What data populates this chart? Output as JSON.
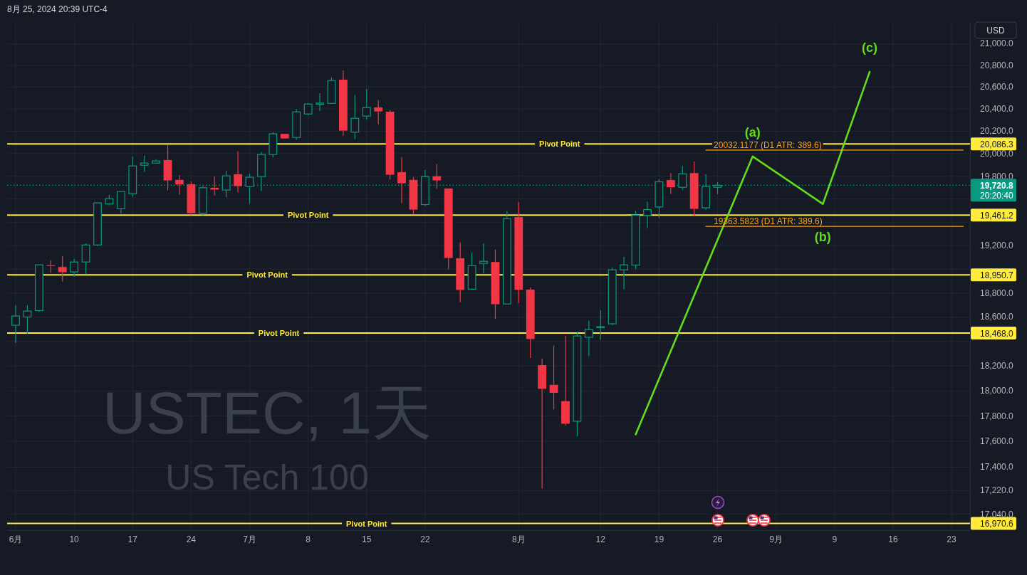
{
  "chart_data": {
    "type": "candlestick",
    "title": "USTEC, 1天",
    "subtitle": "US Tech 100",
    "ylabel": "USD",
    "categories": [
      "6月",
      null,
      null,
      null,
      null,
      "10",
      null,
      null,
      null,
      null,
      "17",
      null,
      null,
      null,
      null,
      "24",
      null,
      null,
      null,
      null,
      "7月",
      null,
      null,
      null,
      null,
      "8",
      null,
      null,
      null,
      null,
      "15",
      null,
      null,
      null,
      null,
      "22",
      null,
      null,
      null,
      null,
      null,
      null,
      null,
      "8月",
      null,
      null,
      null,
      null,
      null,
      null,
      "12",
      null,
      null,
      null,
      null,
      "19",
      null,
      null,
      null,
      null,
      "26",
      null,
      null,
      null,
      null,
      "9月",
      null,
      null,
      null,
      null,
      "9",
      null,
      null,
      null,
      null,
      "16",
      null,
      null,
      null,
      null,
      "23",
      null
    ],
    "ohlc": [
      [
        18532,
        18698,
        18386,
        18608
      ],
      [
        18600,
        18698,
        18458,
        18649
      ],
      [
        18653,
        19036,
        18641,
        19036
      ],
      [
        19030,
        19074,
        18968,
        19025
      ],
      [
        19018,
        19110,
        18896,
        18974
      ],
      [
        18976,
        19086,
        18936,
        19060
      ],
      [
        19060,
        19218,
        18956,
        19205
      ],
      [
        19205,
        19567,
        19195,
        19567
      ],
      [
        19558,
        19637,
        19546,
        19604
      ],
      [
        19517,
        19666,
        19478,
        19666
      ],
      [
        19647,
        19975,
        19620,
        19891
      ],
      [
        19897,
        19981,
        19838,
        19916
      ],
      [
        19916,
        19950,
        19916,
        19935
      ],
      [
        19943,
        20080,
        19676,
        19763
      ],
      [
        19768,
        19811,
        19637,
        19728
      ],
      [
        19730,
        19753,
        19460,
        19478
      ],
      [
        19478,
        19713,
        19460,
        19699
      ],
      [
        19699,
        19797,
        19631,
        19683
      ],
      [
        19679,
        19849,
        19614,
        19803
      ],
      [
        19818,
        20019,
        19657,
        19713
      ],
      [
        19710,
        19824,
        19563,
        19791
      ],
      [
        19797,
        20013,
        19670,
        19992
      ],
      [
        19992,
        20190,
        19964,
        20176
      ],
      [
        20176,
        20176,
        20135,
        20135
      ],
      [
        20144,
        20400,
        20122,
        20374
      ],
      [
        20355,
        20451,
        20345,
        20445
      ],
      [
        20443,
        20544,
        20383,
        20454
      ],
      [
        20451,
        20688,
        20451,
        20660
      ],
      [
        20668,
        20753,
        20160,
        20205
      ],
      [
        20192,
        20525,
        20129,
        20316
      ],
      [
        20336,
        20583,
        20301,
        20413
      ],
      [
        20415,
        20480,
        20261,
        20378
      ],
      [
        20376,
        20389,
        19769,
        19813
      ],
      [
        19836,
        19968,
        19564,
        19738
      ],
      [
        19768,
        19793,
        19472,
        19509
      ],
      [
        19552,
        19855,
        19540,
        19797
      ],
      [
        19800,
        19906,
        19693,
        19763
      ],
      [
        19693,
        19693,
        18998,
        19094
      ],
      [
        19092,
        19226,
        18722,
        18825
      ],
      [
        18831,
        19141,
        18831,
        19030
      ],
      [
        19048,
        19218,
        18964,
        19066
      ],
      [
        19060,
        19165,
        18585,
        18706
      ],
      [
        18708,
        19495,
        18708,
        19431
      ],
      [
        19444,
        19575,
        18716,
        18827
      ],
      [
        18828,
        18847,
        18265,
        18419
      ],
      [
        18207,
        18261,
        17236,
        18016
      ],
      [
        18048,
        18365,
        17852,
        17984
      ],
      [
        17918,
        18446,
        17724,
        17739
      ],
      [
        17758,
        18477,
        17641,
        18444
      ],
      [
        18433,
        18571,
        18280,
        18497
      ],
      [
        18515,
        18657,
        18413,
        18520
      ],
      [
        18544,
        19014,
        18532,
        18994
      ],
      [
        18994,
        19103,
        18831,
        19036
      ],
      [
        19034,
        19496,
        19000,
        19460
      ],
      [
        19458,
        19579,
        19349,
        19509
      ],
      [
        19532,
        19772,
        19435,
        19751
      ],
      [
        19766,
        19828,
        19645,
        19703
      ],
      [
        19703,
        19891,
        19683,
        19822
      ],
      [
        19828,
        19929,
        19452,
        19515
      ],
      [
        19524,
        19818,
        19509,
        19710
      ],
      [
        19703,
        19749,
        19642,
        19720.8
      ],
      null,
      null,
      null,
      null,
      null,
      null,
      null,
      null,
      null,
      null,
      null,
      null,
      null,
      null,
      null,
      null,
      null,
      null,
      null,
      null,
      null
    ],
    "colors": [
      "#089981",
      "#089981",
      "#089981",
      "#f23645",
      "#f23645",
      "#089981",
      "#089981",
      "#089981",
      "#089981",
      "#089981",
      "#089981",
      "#089981",
      "#089981",
      "#f23645",
      "#f23645",
      "#f23645",
      "#089981",
      "#f23645",
      "#089981",
      "#f23645",
      "#089981",
      "#089981",
      "#089981",
      "#f23645",
      "#089981",
      "#089981",
      "#089981",
      "#089981",
      "#f23645",
      "#089981",
      "#089981",
      "#f23645",
      "#f23645",
      "#f23645",
      "#f23645",
      "#089981",
      "#f23645",
      "#f23645",
      "#f23645",
      "#089981",
      "#089981",
      "#f23645",
      "#089981",
      "#f23645",
      "#f23645",
      "#f23645",
      "#f23645",
      "#f23645",
      "#089981",
      "#089981",
      "#089981",
      "#089981",
      "#089981",
      "#089981",
      "#089981",
      "#089981",
      "#f23645",
      "#089981",
      "#f23645",
      "#089981",
      "#089981",
      null,
      null,
      null,
      null,
      null,
      null,
      null,
      null,
      null,
      null,
      null,
      null,
      null,
      null,
      null,
      null,
      null,
      null,
      null,
      null,
      null
    ],
    "series": [
      {
        "type": "line",
        "color": "#62dd1c",
        "values": [
          null,
          null,
          null,
          null,
          null,
          null,
          null,
          null,
          null,
          null,
          null,
          null,
          null,
          null,
          null,
          null,
          null,
          null,
          null,
          null,
          null,
          null,
          null,
          null,
          null,
          null,
          null,
          null,
          null,
          null,
          null,
          null,
          null,
          null,
          null,
          null,
          null,
          null,
          null,
          null,
          null,
          null,
          null,
          null,
          null,
          null,
          null,
          null,
          null,
          null,
          null,
          null,
          null,
          17655,
          null,
          null,
          null,
          null,
          null,
          null,
          null,
          null,
          null,
          19975,
          null,
          null,
          null,
          null,
          null,
          19558,
          null,
          null,
          null,
          20740,
          null,
          null,
          null,
          null,
          null,
          null,
          null,
          null
        ]
      },
      {
        "type": "line",
        "name": "20032.1177 (D1 ATR: 389.6)",
        "color": "#f7a21b",
        "values": [
          null,
          null,
          null,
          null,
          null,
          null,
          null,
          null,
          null,
          null,
          null,
          null,
          null,
          null,
          null,
          null,
          null,
          null,
          null,
          null,
          null,
          null,
          null,
          null,
          null,
          null,
          null,
          null,
          null,
          null,
          null,
          null,
          null,
          null,
          null,
          null,
          null,
          null,
          null,
          null,
          null,
          null,
          null,
          null,
          null,
          null,
          null,
          null,
          null,
          null,
          null,
          null,
          null,
          null,
          null,
          null,
          null,
          null,
          null,
          20032.1177,
          20032.1177,
          20032.1177,
          20032.1177,
          20032.1177,
          20032.1177,
          20032.1177,
          20032.1177,
          20032.1177,
          20032.1177,
          20032.1177,
          20032.1177,
          20032.1177,
          20032.1177,
          20032.1177,
          20032.1177,
          20032.1177,
          20032.1177,
          20032.1177,
          20032.1177,
          20032.1177,
          20032.1177,
          20032.1177
        ]
      },
      {
        "type": "line",
        "name": "19363.5823 (D1 ATR: 389.6)",
        "color": "#f7a21b",
        "values": [
          null,
          null,
          null,
          null,
          null,
          null,
          null,
          null,
          null,
          null,
          null,
          null,
          null,
          null,
          null,
          null,
          null,
          null,
          null,
          null,
          null,
          null,
          null,
          null,
          null,
          null,
          null,
          null,
          null,
          null,
          null,
          null,
          null,
          null,
          null,
          null,
          null,
          null,
          null,
          null,
          null,
          null,
          null,
          null,
          null,
          null,
          null,
          null,
          null,
          null,
          null,
          null,
          null,
          null,
          null,
          null,
          null,
          null,
          null,
          19363.5823,
          19363.5823,
          19363.5823,
          19363.5823,
          19363.5823,
          19363.5823,
          19363.5823,
          19363.5823,
          19363.5823,
          19363.5823,
          19363.5823,
          19363.5823,
          19363.5823,
          19363.5823,
          19363.5823,
          19363.5823,
          19363.5823,
          19363.5823,
          19363.5823,
          19363.5823,
          19363.5823,
          19363.5823,
          19363.5823
        ]
      }
    ],
    "ylim": [
      16920,
      21210
    ],
    "yticks": [
      {
        "value": 17040,
        "label": "17,040.0"
      },
      {
        "value": 17220,
        "label": "17,220.0"
      },
      {
        "value": 17400,
        "label": "17,400.0"
      },
      {
        "value": 17600,
        "label": "17,600.0"
      },
      {
        "value": 17800,
        "label": "17,800.0"
      },
      {
        "value": 18000,
        "label": "18,000.0"
      },
      {
        "value": 18200,
        "label": "18,200.0"
      },
      {
        "value": 18400,
        "label": null
      },
      {
        "value": 18600,
        "label": "18,600.0"
      },
      {
        "value": 18800,
        "label": "18,800.0"
      },
      {
        "value": 19000,
        "label": null
      },
      {
        "value": 19200,
        "label": "19,200.0"
      },
      {
        "value": 19400,
        "label": null
      },
      {
        "value": 19600,
        "label": null
      },
      {
        "value": 19800,
        "label": "19,800.0"
      },
      {
        "value": 20000,
        "label": "20,000.0"
      },
      {
        "value": 20200,
        "label": "20,200.0"
      },
      {
        "value": 20400,
        "label": "20,400.0"
      },
      {
        "value": 20600,
        "label": "20,600.0"
      },
      {
        "value": 20800,
        "label": "20,800.0"
      },
      {
        "value": 21000,
        "label": "21,000.0"
      }
    ],
    "log": true,
    "grid": true,
    "ref_lines": [
      {
        "axis": "y",
        "value": 20086.3,
        "label": "20,086.3",
        "color": "#ffeb3b"
      },
      {
        "axis": "y",
        "value": 19461.2,
        "label": "19,461.2",
        "color": "#ffeb3b"
      },
      {
        "axis": "y",
        "value": 18950.7,
        "label": "18,950.7",
        "color": "#ffeb3b"
      },
      {
        "axis": "y",
        "value": 18468.0,
        "label": "18,468.0",
        "color": "#ffeb3b"
      },
      {
        "axis": "y",
        "value": 16970.6,
        "label": "16,970.6",
        "color": "#ffeb3b"
      },
      {
        "axis": "y",
        "value": 19720.8,
        "label": "19,720.8\n20:20:40",
        "color": "#089981",
        "line_style": "dotted"
      }
    ],
    "annotations": [
      "8月 25, 2024 20:39 UTC-4",
      {
        "text": "Pivot Point",
        "y": 20086.3
      },
      {
        "text": "Pivot Point",
        "y": 19461.2
      },
      {
        "text": "Pivot Point",
        "y": 18950.7
      },
      {
        "text": "Pivot Point",
        "y": 18468.0
      },
      {
        "text": "Pivot Point",
        "y": 16970.6
      },
      {
        "text": "(a)",
        "y": 19975
      },
      {
        "text": "(b)",
        "y": 19558
      },
      {
        "text": "(c)",
        "y": 20740
      }
    ]
  }
}
